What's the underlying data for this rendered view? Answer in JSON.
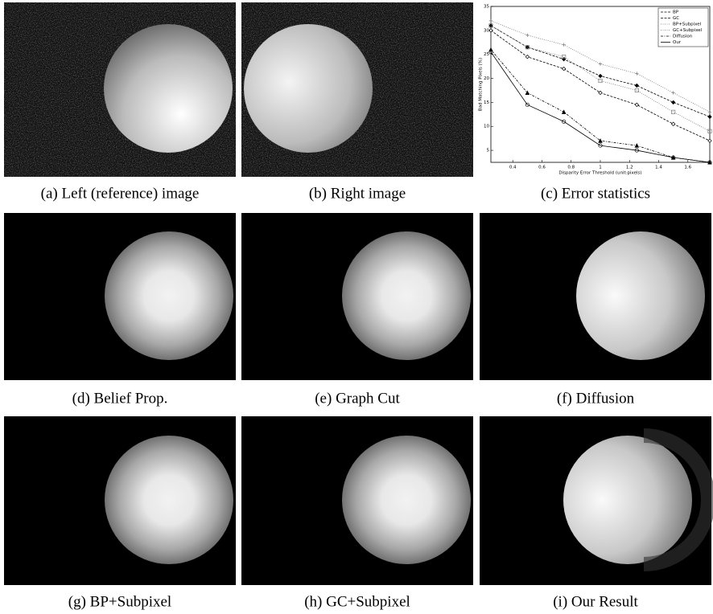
{
  "panels": [
    {
      "caption": "(a) Left (reference) image"
    },
    {
      "caption": "(b) Right image"
    },
    {
      "caption": "(c) Error statistics"
    },
    {
      "caption": "(d) Belief Prop."
    },
    {
      "caption": "(e) Graph Cut"
    },
    {
      "caption": "(f) Diffusion"
    },
    {
      "caption": "(g) BP+Subpixel"
    },
    {
      "caption": "(h) GC+Subpixel"
    },
    {
      "caption": "(i) Our Result"
    }
  ],
  "chart_data": {
    "type": "line",
    "x_label": "Disparity Error Threshold (unit:pixels)",
    "y_label": "Bad Matching Pixels (%)",
    "x": [
      0.25,
      0.5,
      0.75,
      1.0,
      1.25,
      1.5,
      1.75
    ],
    "xlim": [
      0.25,
      1.75
    ],
    "xticks": [
      0.4,
      0.6,
      0.8,
      1,
      1.2,
      1.4,
      1.6
    ],
    "ylim": [
      2.5,
      35
    ],
    "yticks": [
      5,
      10,
      15,
      20,
      25,
      30,
      35
    ],
    "legend": "upper right",
    "series": [
      {
        "name": "BP",
        "color": "#000000",
        "marker": "diamond-filled",
        "line_style": "dashed",
        "values": [
          31,
          26.5,
          24,
          20.5,
          18.5,
          15,
          12
        ]
      },
      {
        "name": "GC",
        "color": "#000000",
        "marker": "diamond",
        "line_style": "dashed",
        "values": [
          30,
          24.5,
          22,
          17,
          14.5,
          10.5,
          7
        ]
      },
      {
        "name": "BP+Subpixel",
        "color": "#777777",
        "marker": "plus",
        "line_style": "dotted",
        "values": [
          32,
          29,
          27,
          23,
          21,
          17,
          13
        ]
      },
      {
        "name": "GC+Subpixel",
        "color": "#777777",
        "marker": "square",
        "line_style": "dotted",
        "values": [
          31,
          26.5,
          24.5,
          19.5,
          17.5,
          13,
          9
        ]
      },
      {
        "name": "Diffusion",
        "color": "#000000",
        "marker": "triangle",
        "line_style": "dashdot",
        "values": [
          26,
          17,
          13,
          7,
          6,
          3.5,
          2.5
        ]
      },
      {
        "name": "Our",
        "color": "#000000",
        "marker": "circle",
        "line_style": "solid",
        "values": [
          25.5,
          14.5,
          11,
          6,
          5,
          3.5,
          2.5
        ]
      }
    ]
  }
}
